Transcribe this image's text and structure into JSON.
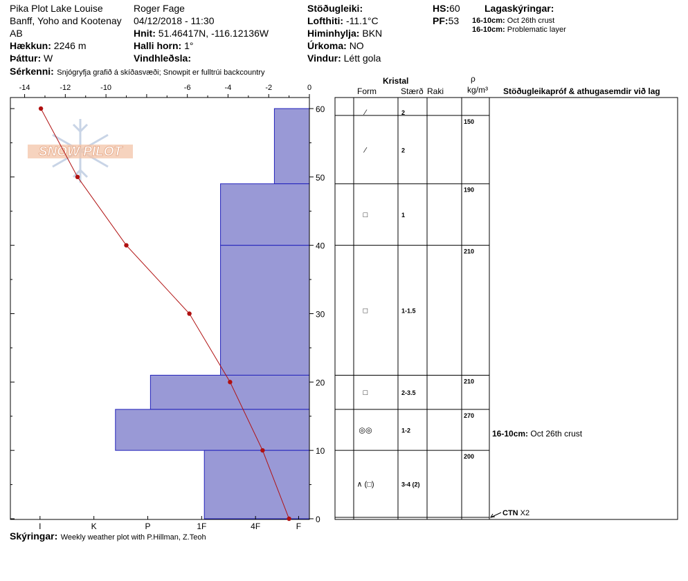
{
  "header": {
    "site_name": "Pika Plot Lake Louise",
    "region": "Banff, Yoho and Kootenay",
    "province": "AB",
    "elevation_label": "Hækkun:",
    "elevation_value": "2246 m",
    "aspect_label": "Þáttur:",
    "aspect_value": "W",
    "observer": "Roger Fage",
    "datetime": "04/12/2018 - 11:30",
    "coords_label": "Hnit:",
    "coords_value": "51.46417N, -116.12136W",
    "slope_label": "Halli horn:",
    "slope_value": "1°",
    "wind_loading_label": "Vindhleðsla:",
    "stability_label": "Stöðugleiki:",
    "air_temp_label": "Lofthiti:",
    "air_temp_value": "-11.1°C",
    "sky_label": "Himinhylja:",
    "sky_value": "BKN",
    "precip_label": "Úrkoma:",
    "precip_value": "NO",
    "wind_label": "Vindur:",
    "wind_value": "Létt gola",
    "hs_label": "HS:",
    "hs_value": "60",
    "pf_label": "PF:",
    "pf_value": "53",
    "legend_title": "Lagaskýringar:",
    "legend_items": [
      {
        "depth": "16-10cm:",
        "text": "Oct 26th crust"
      },
      {
        "depth": "16-10cm:",
        "text": "Problematic layer"
      }
    ],
    "features_label": "Sérkenni:",
    "features_value": "Snjógryfja grafið á skíðasvæði; Snowpit er fulltrúi backcountry"
  },
  "footer": {
    "notes_label": "Skýringar:",
    "notes_value": "Weekly weather plot with P.Hillman, Z.Teoh"
  },
  "logo": {
    "text": "SNOW PILOT"
  },
  "table": {
    "crystal_header": "Kristal",
    "form_header": "Form",
    "size_header": "Stærð",
    "moisture_header": "Raki",
    "rho_header": "ρ",
    "density_unit": "kg/m³",
    "tests_header": "Stöðugleikapróf & athugasemdir við lag",
    "layers": [
      {
        "top": 60,
        "bottom": 59,
        "form": "⁄",
        "size": "2",
        "density": ""
      },
      {
        "top": 59,
        "bottom": 49,
        "form": "⁄",
        "size": "2",
        "density": "150"
      },
      {
        "top": 49,
        "bottom": 40,
        "form": "□",
        "size": "1",
        "density": "190"
      },
      {
        "top": 40,
        "bottom": 21,
        "form": "□",
        "size": "1-1.5",
        "density": "210"
      },
      {
        "top": 21,
        "bottom": 16,
        "form": "□",
        "size": "2-3.5",
        "density": "210"
      },
      {
        "top": 16,
        "bottom": 10,
        "form": "◎◎",
        "size": "1-2",
        "density": "270"
      },
      {
        "top": 10,
        "bottom": 0.2,
        "form": "∧ (□)",
        "size": "3-4 (2)",
        "density": "200"
      },
      {
        "top": 0.2,
        "bottom": 0,
        "form": "",
        "size": "",
        "density": ""
      }
    ],
    "comment_depth": "16-10cm:",
    "comment_text": "Oct 26th crust",
    "test_label": "CTN",
    "test_value": "X2"
  },
  "colors": {
    "hardness_fill": "#9999d6",
    "hardness_line": "#2222bb",
    "temp_line": "#b01010",
    "temp_point": "#b01010"
  },
  "chart_data": {
    "type": "snow-profile",
    "temperature_axis": {
      "min": -14.7,
      "max": 0,
      "ticks": [
        -14,
        -12,
        -10,
        -8,
        -6,
        -4,
        -2,
        0
      ],
      "tick_labels": [
        "-14",
        "-12",
        "-10",
        "",
        "-6",
        "-4",
        "-2",
        "0"
      ]
    },
    "depth_axis": {
      "min": 0,
      "max": 60,
      "ticks": [
        0,
        10,
        20,
        30,
        40,
        50,
        60
      ],
      "tick_labels": [
        "0",
        "10",
        "20",
        "30",
        "40",
        "50",
        "60"
      ]
    },
    "hardness_axis": {
      "categories": [
        "I",
        "K",
        "P",
        "1F",
        "4F",
        "F"
      ],
      "category_values": [
        5,
        4,
        3,
        2,
        1,
        0.2
      ]
    },
    "temperature_profile": [
      {
        "depth": 60,
        "temp": -13.2
      },
      {
        "depth": 50,
        "temp": -11.4
      },
      {
        "depth": 40,
        "temp": -9.0
      },
      {
        "depth": 30,
        "temp": -5.9
      },
      {
        "depth": 20,
        "temp": -3.9
      },
      {
        "depth": 10,
        "temp": -2.3
      },
      {
        "depth": 0,
        "temp": -1.0
      }
    ],
    "hardness_profile": [
      {
        "top": 60,
        "bottom": 49,
        "hardness": 0.65
      },
      {
        "top": 49,
        "bottom": 40,
        "hardness": 1.65
      },
      {
        "top": 40,
        "bottom": 21,
        "hardness": 1.65
      },
      {
        "top": 21,
        "bottom": 16,
        "hardness": 2.95
      },
      {
        "top": 16,
        "bottom": 10,
        "hardness": 3.6
      },
      {
        "top": 10,
        "bottom": 0,
        "hardness": 1.95
      }
    ]
  }
}
